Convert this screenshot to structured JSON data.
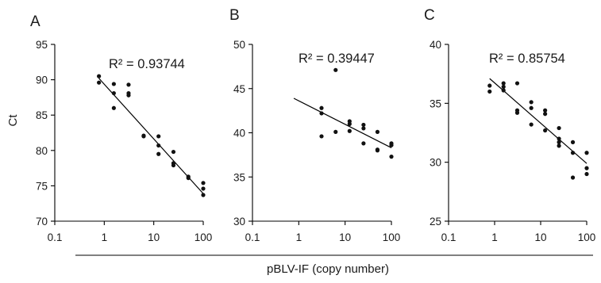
{
  "figure": {
    "xlabel": "pBLV-IF (copy number)",
    "ylabel": "Ct"
  },
  "chart_data": [
    {
      "type": "scatter",
      "panel": "A",
      "annotation": "R² = 0.93744",
      "xscale": "log",
      "xlim": [
        0.1,
        100
      ],
      "xticks": [
        "0.1",
        "1",
        "10",
        "100"
      ],
      "ylim": [
        70,
        95
      ],
      "yticks": [
        "70",
        "75",
        "80",
        "85",
        "90",
        "95"
      ],
      "trendline": {
        "x": [
          0.78,
          100
        ],
        "y": [
          90.2,
          73.9
        ]
      },
      "points": [
        {
          "x": 0.78,
          "y": 90.5
        },
        {
          "x": 0.78,
          "y": 89.6
        },
        {
          "x": 1.56,
          "y": 89.4
        },
        {
          "x": 1.56,
          "y": 88.1
        },
        {
          "x": 1.56,
          "y": 86.0
        },
        {
          "x": 3.1,
          "y": 89.3
        },
        {
          "x": 3.1,
          "y": 88.1
        },
        {
          "x": 3.1,
          "y": 87.8
        },
        {
          "x": 6.25,
          "y": 82.1
        },
        {
          "x": 6.25,
          "y": 82.0
        },
        {
          "x": 12.5,
          "y": 82.0
        },
        {
          "x": 12.5,
          "y": 80.7
        },
        {
          "x": 12.5,
          "y": 79.5
        },
        {
          "x": 25,
          "y": 79.8
        },
        {
          "x": 25,
          "y": 78.2
        },
        {
          "x": 25,
          "y": 77.9
        },
        {
          "x": 50,
          "y": 76.3
        },
        {
          "x": 50,
          "y": 76.1
        },
        {
          "x": 100,
          "y": 75.4
        },
        {
          "x": 100,
          "y": 74.6
        },
        {
          "x": 100,
          "y": 73.7
        }
      ]
    },
    {
      "type": "scatter",
      "panel": "B",
      "annotation": "R² = 0.39447",
      "xscale": "log",
      "xlim": [
        0.1,
        100
      ],
      "xticks": [
        "0.1",
        "1",
        "10",
        "100"
      ],
      "ylim": [
        30,
        50
      ],
      "yticks": [
        "30",
        "35",
        "40",
        "45",
        "50"
      ],
      "trendline": {
        "x": [
          0.78,
          100
        ],
        "y": [
          43.9,
          38.3
        ]
      },
      "points": [
        {
          "x": 3.1,
          "y": 42.8
        },
        {
          "x": 3.1,
          "y": 42.2
        },
        {
          "x": 3.1,
          "y": 39.6
        },
        {
          "x": 6.25,
          "y": 47.1
        },
        {
          "x": 6.25,
          "y": 40.1
        },
        {
          "x": 12.5,
          "y": 41.3
        },
        {
          "x": 12.5,
          "y": 41.0
        },
        {
          "x": 12.5,
          "y": 40.2
        },
        {
          "x": 25,
          "y": 40.9
        },
        {
          "x": 25,
          "y": 40.5
        },
        {
          "x": 25,
          "y": 38.8
        },
        {
          "x": 50,
          "y": 40.1
        },
        {
          "x": 50,
          "y": 38.1
        },
        {
          "x": 50,
          "y": 38.0
        },
        {
          "x": 100,
          "y": 38.8
        },
        {
          "x": 100,
          "y": 38.6
        },
        {
          "x": 100,
          "y": 37.3
        }
      ]
    },
    {
      "type": "scatter",
      "panel": "C",
      "annotation": "R² = 0.85754",
      "xscale": "log",
      "xlim": [
        0.1,
        100
      ],
      "xticks": [
        "0.1",
        "1",
        "10",
        "100"
      ],
      "ylim": [
        25,
        40
      ],
      "yticks": [
        "25",
        "30",
        "35",
        "40"
      ],
      "trendline": {
        "x": [
          0.78,
          100
        ],
        "y": [
          37.1,
          29.9
        ]
      },
      "points": [
        {
          "x": 0.78,
          "y": 36.5
        },
        {
          "x": 0.78,
          "y": 36.0
        },
        {
          "x": 1.56,
          "y": 36.7
        },
        {
          "x": 1.56,
          "y": 36.4
        },
        {
          "x": 1.56,
          "y": 36.1
        },
        {
          "x": 3.1,
          "y": 36.7
        },
        {
          "x": 3.1,
          "y": 34.4
        },
        {
          "x": 3.1,
          "y": 34.2
        },
        {
          "x": 6.25,
          "y": 35.1
        },
        {
          "x": 6.25,
          "y": 34.6
        },
        {
          "x": 6.25,
          "y": 33.2
        },
        {
          "x": 12.5,
          "y": 34.4
        },
        {
          "x": 12.5,
          "y": 34.1
        },
        {
          "x": 12.5,
          "y": 32.7
        },
        {
          "x": 25,
          "y": 32.9
        },
        {
          "x": 25,
          "y": 32.0
        },
        {
          "x": 25,
          "y": 31.7
        },
        {
          "x": 25,
          "y": 31.4
        },
        {
          "x": 50,
          "y": 31.7
        },
        {
          "x": 50,
          "y": 30.8
        },
        {
          "x": 50,
          "y": 28.7
        },
        {
          "x": 100,
          "y": 30.8
        },
        {
          "x": 100,
          "y": 29.5
        },
        {
          "x": 100,
          "y": 29.0
        }
      ]
    }
  ]
}
